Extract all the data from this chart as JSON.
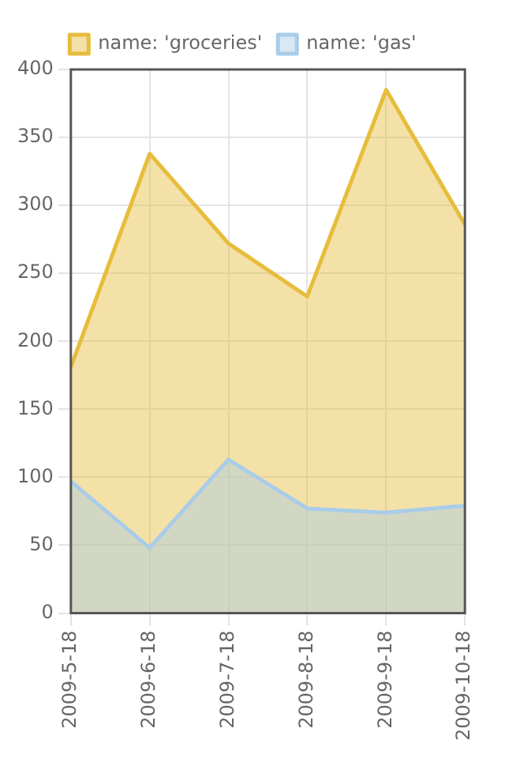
{
  "chart_data": {
    "type": "area",
    "categories": [
      "2009-5-18",
      "2009-6-18",
      "2009-7-18",
      "2009-8-18",
      "2009-9-18",
      "2009-10-18"
    ],
    "series": [
      {
        "name": "name: 'groceries'",
        "color": "#e6bd3c",
        "values": [
          181,
          338,
          272,
          233,
          385,
          286
        ]
      },
      {
        "name": "name: 'gas'",
        "color": "#a9cde9",
        "values": [
          97,
          48,
          113,
          77,
          74,
          79
        ]
      }
    ],
    "ylim": [
      0,
      400
    ],
    "yticks": [
      0,
      50,
      100,
      150,
      200,
      250,
      300,
      350,
      400
    ],
    "grid": true,
    "legend": "top",
    "marker": "none"
  }
}
